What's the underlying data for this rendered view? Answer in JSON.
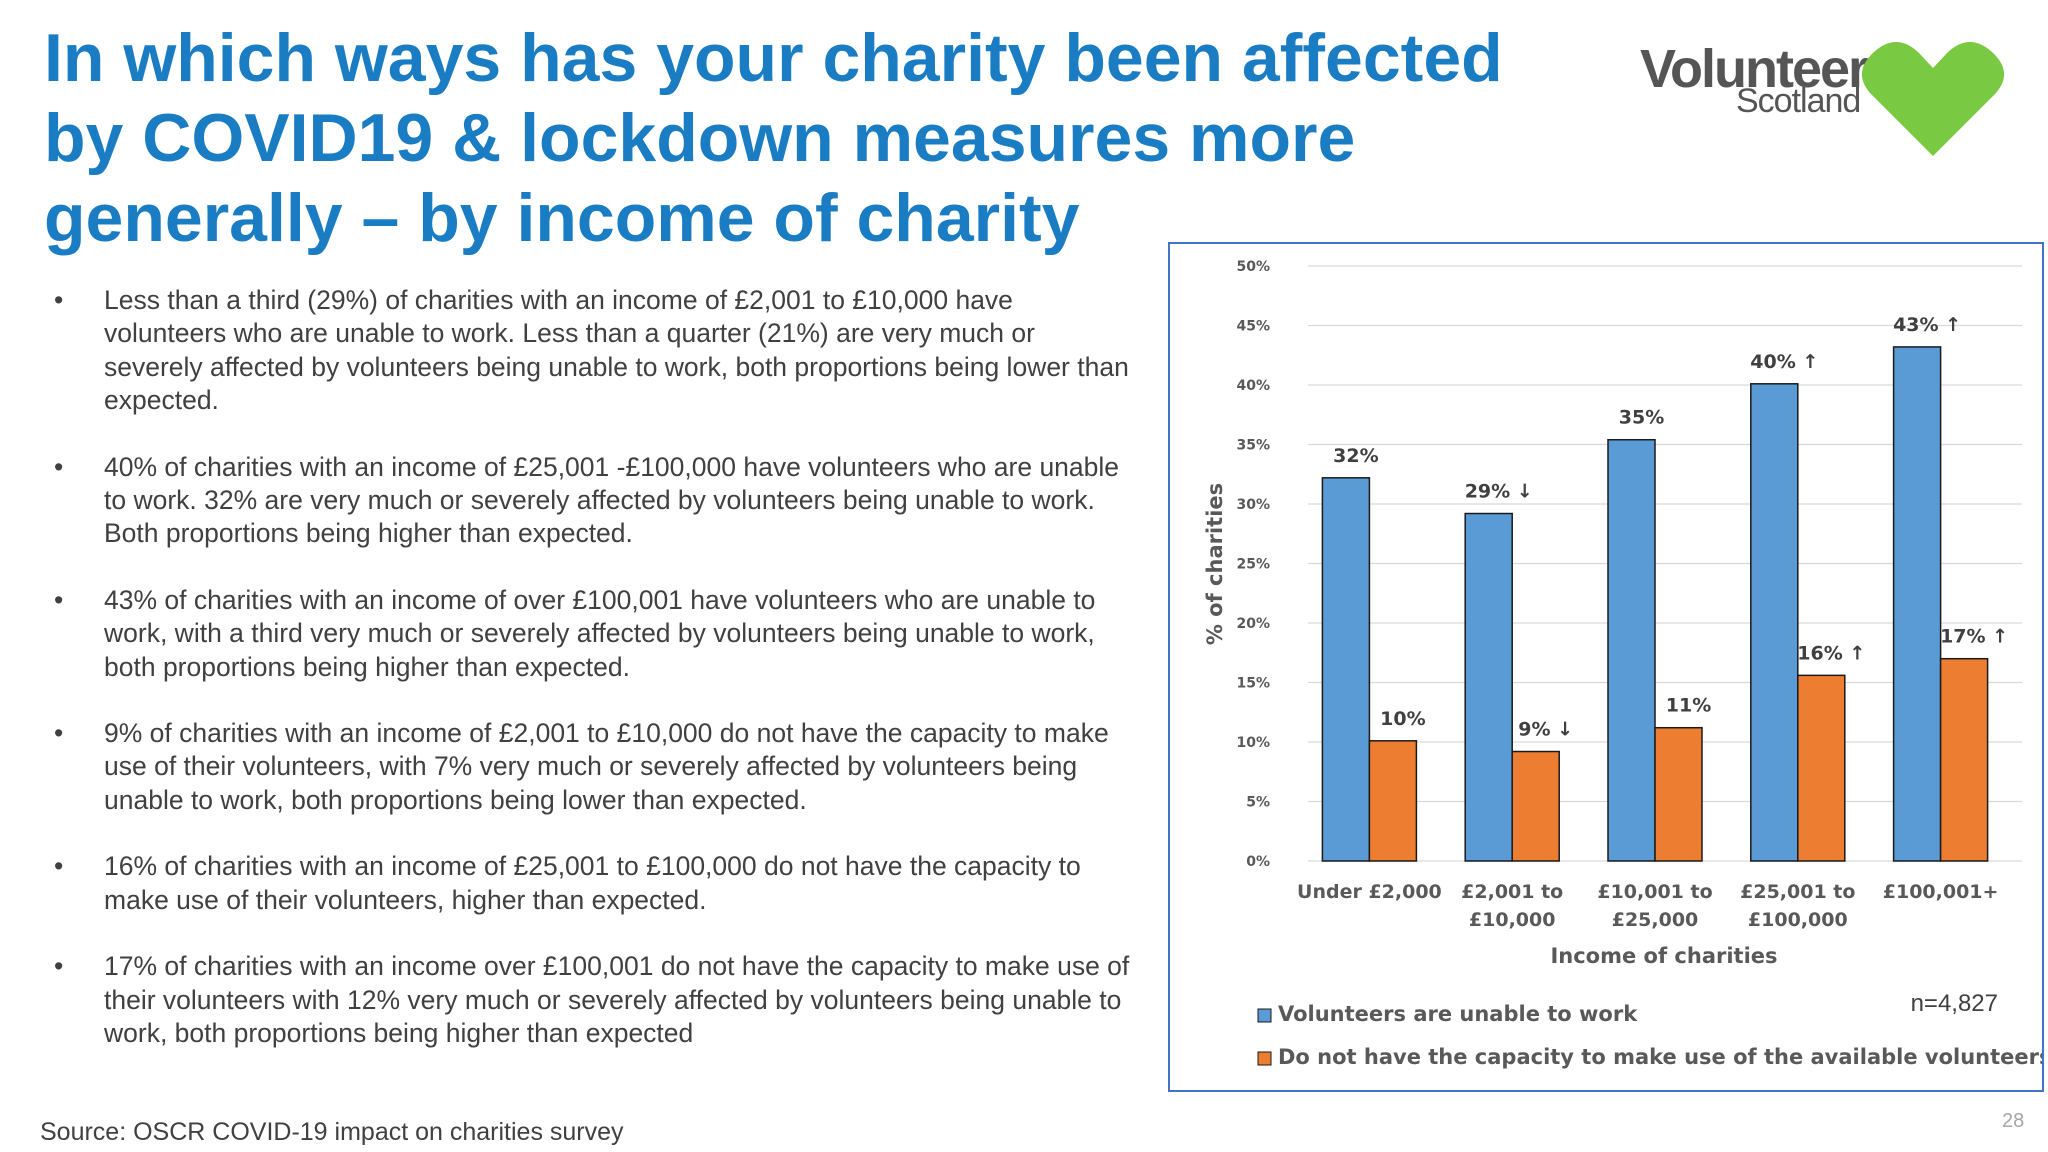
{
  "title": "In which ways has your charity been affected by COVID19 & lockdown measures more generally – by income of charity",
  "logo": {
    "text_main": "Volunteer",
    "text_sub": "Scotland",
    "heart_color": "#7ac943"
  },
  "bullets": [
    "Less than a third (29%) of charities with an income of £2,001 to £10,000 have volunteers who are unable to work. Less than a quarter (21%) are very much or severely affected by volunteers being unable to work, both proportions being lower than expected.",
    "40% of charities with an income of £25,001 -£100,000 have volunteers who are unable to work. 32% are very much or severely affected by volunteers being unable to work. Both proportions being higher than expected.",
    "43% of charities with an income of over £100,001 have volunteers who are unable to work, with a third very much or severely affected by volunteers being unable to work, both proportions being higher than expected.",
    "9% of charities with an income of £2,001 to £10,000 do not have the capacity to make use of their volunteers, with 7% very much or severely affected by volunteers being unable to work, both proportions being lower than expected.",
    "16% of charities with an income of £25,001 to £100,000 do not have the capacity to make use of their volunteers, higher than expected.",
    "17% of charities with an income over £100,001 do not have the capacity to make use of their volunteers with 12% very much or severely affected by volunteers being unable to work, both proportions being higher than expected"
  ],
  "source": "Source: OSCR COVID-19 impact on charities survey",
  "page_number": "28",
  "chart_data": {
    "type": "bar",
    "xlabel": "Income of charities",
    "ylabel": "% of charities",
    "ylim": [
      0,
      50
    ],
    "yticks": [
      "0%",
      "5%",
      "10%",
      "15%",
      "20%",
      "25%",
      "30%",
      "35%",
      "40%",
      "45%",
      "50%"
    ],
    "grid": true,
    "legend_position": "bottom-left",
    "note": "n=4,827",
    "categories": [
      [
        "Under £2,000"
      ],
      [
        "£2,001 to",
        "£10,000"
      ],
      [
        "£10,001 to",
        "£25,000"
      ],
      [
        "£25,001 to",
        "£100,000"
      ],
      [
        "£100,001+"
      ]
    ],
    "series": [
      {
        "name": "Volunteers are unable to work",
        "color": "#5b9bd5",
        "values": [
          32.2,
          29.2,
          35.4,
          40.1,
          43.2
        ],
        "labels": [
          "32%",
          "29% ↓",
          "35%",
          "40% ↑",
          "43% ↑"
        ]
      },
      {
        "name": "Do not have the capacity to make use of the available volunteers",
        "color": "#ed7d31",
        "values": [
          10.1,
          9.2,
          11.2,
          15.6,
          17.0
        ],
        "labels": [
          "10%",
          "9% ↓",
          "11%",
          "16% ↑",
          "17% ↑"
        ]
      }
    ]
  }
}
